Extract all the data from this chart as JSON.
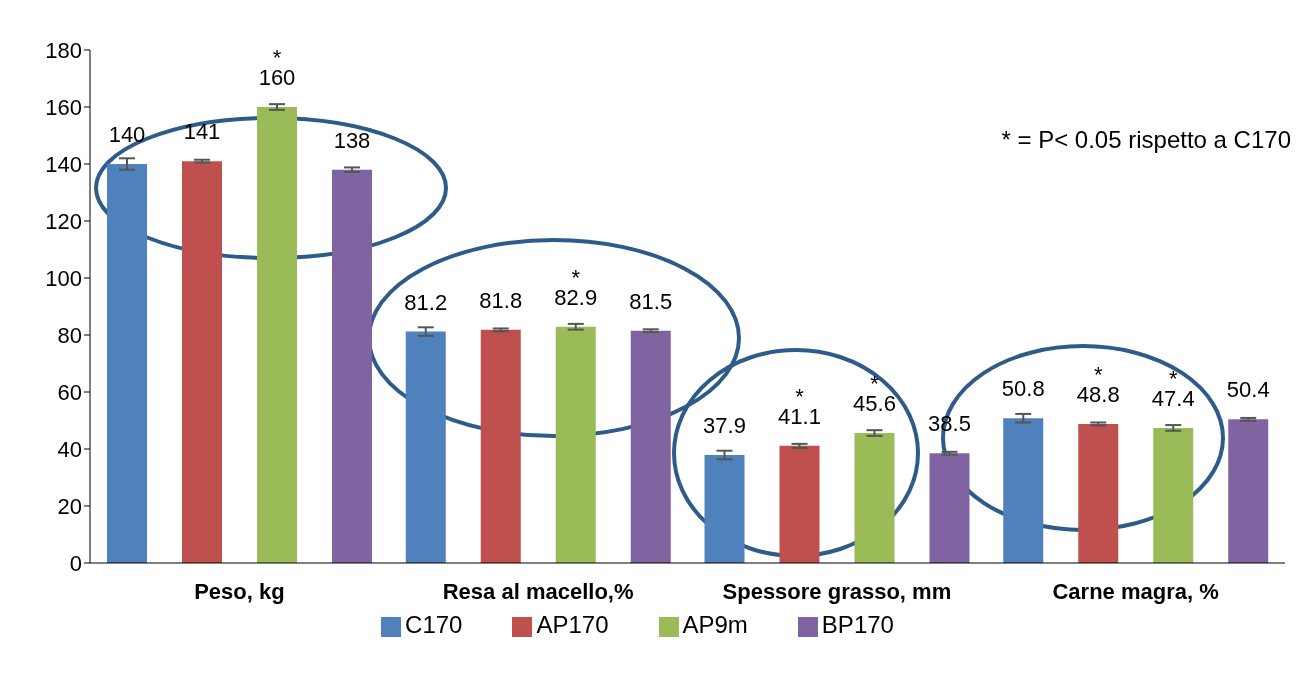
{
  "chart_data": {
    "type": "bar",
    "categories": [
      "Peso, kg",
      "Resa al macello,%",
      "Spessore grasso, mm",
      "Carne magra, %"
    ],
    "series": [
      {
        "name": "C170",
        "color": "#4f81bd",
        "values": [
          140,
          81.2,
          37.9,
          50.8
        ],
        "errors": [
          2,
          1.5,
          1.5,
          1.5
        ]
      },
      {
        "name": "AP170",
        "color": "#c0504d",
        "values": [
          141,
          81.8,
          41.1,
          48.8
        ],
        "errors": [
          0.5,
          0.5,
          0.7,
          0.5
        ],
        "value_labels": [
          "141",
          "81.8",
          "*\n41.1",
          "*\n48.8"
        ]
      },
      {
        "name": "AP9m",
        "color": "#9bbb59",
        "values": [
          160,
          82.9,
          45.6,
          47.4
        ],
        "errors": [
          1,
          1,
          1,
          1
        ],
        "value_labels": [
          "*\n160",
          "*\n82.9",
          "*\n45.6",
          "*\n47.4"
        ]
      },
      {
        "name": "BP170",
        "color": "#8064a2",
        "values": [
          138,
          81.5,
          38.5,
          50.4
        ],
        "errors": [
          0.8,
          0.5,
          0.5,
          0.5
        ]
      }
    ],
    "ylim": [
      0,
      180
    ],
    "yticks": [
      0,
      20,
      40,
      60,
      80,
      100,
      120,
      140,
      160,
      180
    ],
    "grid": false,
    "legend": "bottom",
    "data_labels": true,
    "annotations": [
      "* = P< 0.05 rispetto a C170"
    ]
  }
}
